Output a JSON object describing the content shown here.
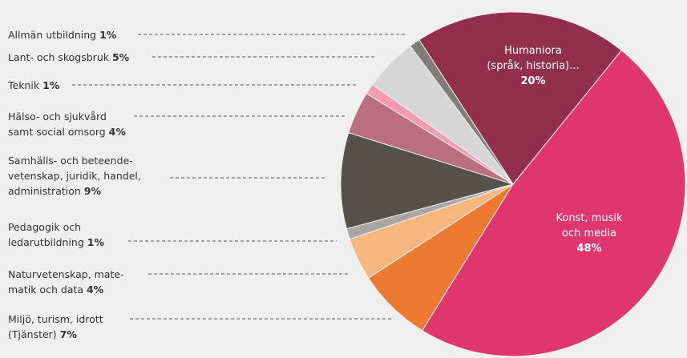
{
  "chart_data": {
    "type": "pie",
    "categories": [
      "Humaniora\n(språk, historia)...",
      "Konst, musik\noch media",
      "Miljö, turism, idrott\n(Tjänster)",
      "Naturvetenskap, mate-\nmatik och data",
      "Pedagogik och\nledarutbildning",
      "Samhälls- och beteende-\nvetenskap, juridik, handel,\nadministration",
      "Hälso- och sjukvård\nsamt social omsorg",
      "Teknik",
      "Lant- och skogsbruk",
      "Allmän utbildning"
    ],
    "values": [
      20,
      48,
      7,
      4,
      1,
      9,
      4,
      1,
      5,
      1
    ],
    "value_labels": [
      "20%",
      "48%",
      "7%",
      "4%",
      "1%",
      "9%",
      "4%",
      "1%",
      "5%",
      "1%"
    ],
    "colors": [
      "#922f4f",
      "#e03670",
      "#ec7a30",
      "#f6b77f",
      "#a8a6a4",
      "#55504b",
      "#b96e82",
      "#f29bb4",
      "#d6d6d6",
      "#807d7b"
    ]
  }
}
